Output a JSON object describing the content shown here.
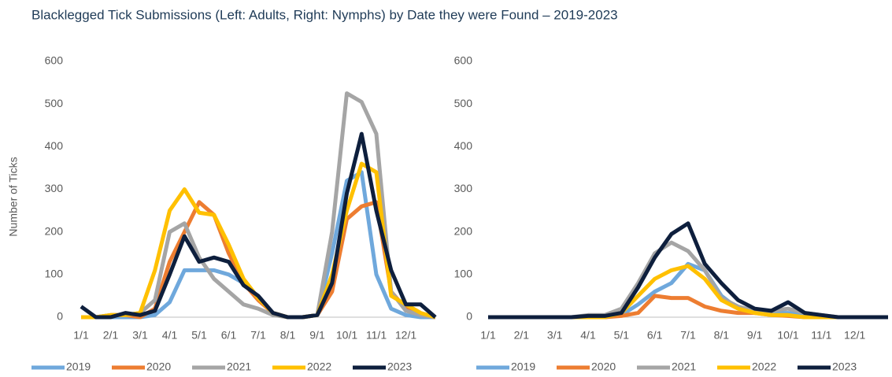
{
  "title": "Blacklegged Tick Submissions (Left: Adults, Right: Nymphs) by Date they were Found – 2019-2023",
  "chart_data": [
    {
      "type": "line",
      "y_label": "Number of Ticks",
      "categories": [
        "1/1",
        null,
        "2/1",
        null,
        "3/1",
        null,
        "4/1",
        null,
        "5/1",
        null,
        "6/1",
        null,
        "7/1",
        null,
        "8/1",
        null,
        "9/1",
        null,
        "10/1",
        null,
        "11/1",
        null,
        "12/1",
        null,
        null
      ],
      "ylim": [
        0,
        600
      ],
      "yticks": [
        0,
        100,
        200,
        300,
        400,
        500,
        600
      ],
      "grid": false,
      "series": [
        {
          "name": "2019",
          "color": "#6fa8dc",
          "values": [
            0,
            0,
            0,
            0,
            0,
            5,
            35,
            110,
            110,
            110,
            100,
            80,
            45,
            10,
            0,
            0,
            5,
            150,
            320,
            340,
            100,
            20,
            5,
            0,
            0
          ]
        },
        {
          "name": "2020",
          "color": "#ed7d31",
          "values": [
            0,
            0,
            5,
            5,
            0,
            20,
            130,
            200,
            270,
            240,
            150,
            80,
            40,
            10,
            0,
            0,
            5,
            60,
            230,
            260,
            270,
            60,
            20,
            5,
            0
          ]
        },
        {
          "name": "2021",
          "color": "#a5a5a5",
          "values": [
            0,
            0,
            5,
            5,
            10,
            40,
            200,
            220,
            140,
            90,
            60,
            30,
            20,
            5,
            0,
            0,
            5,
            200,
            525,
            505,
            430,
            60,
            15,
            5,
            0
          ]
        },
        {
          "name": "2022",
          "color": "#ffc000",
          "values": [
            0,
            0,
            5,
            5,
            10,
            110,
            250,
            300,
            245,
            240,
            170,
            90,
            45,
            10,
            0,
            0,
            5,
            100,
            250,
            360,
            340,
            50,
            30,
            10,
            0
          ]
        },
        {
          "name": "2023",
          "color": "#0e1f3d",
          "values": [
            25,
            0,
            0,
            10,
            5,
            15,
            100,
            190,
            130,
            140,
            130,
            75,
            50,
            10,
            0,
            0,
            5,
            80,
            290,
            430,
            250,
            110,
            30,
            30,
            0
          ]
        }
      ]
    },
    {
      "type": "line",
      "categories": [
        "1/1",
        null,
        "2/1",
        null,
        "3/1",
        null,
        "4/1",
        null,
        "5/1",
        null,
        "6/1",
        null,
        "7/1",
        null,
        "8/1",
        null,
        "9/1",
        null,
        "10/1",
        null,
        "11/1",
        null,
        "12/1",
        null,
        null
      ],
      "ylim": [
        0,
        600
      ],
      "yticks": [
        0,
        100,
        200,
        300,
        400,
        500,
        600
      ],
      "grid": false,
      "series": [
        {
          "name": "2019",
          "color": "#6fa8dc",
          "values": [
            0,
            0,
            0,
            0,
            0,
            0,
            0,
            0,
            5,
            30,
            60,
            80,
            125,
            110,
            50,
            20,
            10,
            10,
            10,
            5,
            0,
            0,
            0,
            0,
            0
          ]
        },
        {
          "name": "2020",
          "color": "#ed7d31",
          "values": [
            0,
            0,
            0,
            0,
            0,
            0,
            0,
            0,
            3,
            10,
            50,
            45,
            45,
            25,
            15,
            10,
            10,
            5,
            3,
            0,
            0,
            0,
            0,
            0,
            0
          ]
        },
        {
          "name": "2021",
          "color": "#a5a5a5",
          "values": [
            0,
            0,
            0,
            0,
            0,
            0,
            5,
            5,
            20,
            80,
            150,
            175,
            155,
            110,
            45,
            25,
            15,
            15,
            20,
            10,
            5,
            0,
            0,
            0,
            0
          ]
        },
        {
          "name": "2022",
          "color": "#ffc000",
          "values": [
            0,
            0,
            0,
            0,
            0,
            0,
            0,
            0,
            10,
            50,
            90,
            110,
            120,
            90,
            40,
            20,
            10,
            5,
            5,
            0,
            0,
            0,
            0,
            0,
            0
          ]
        },
        {
          "name": "2023",
          "color": "#0e1f3d",
          "values": [
            0,
            0,
            0,
            0,
            0,
            0,
            3,
            3,
            10,
            70,
            140,
            195,
            220,
            125,
            80,
            40,
            20,
            15,
            35,
            10,
            5,
            0,
            0,
            0,
            0
          ]
        }
      ]
    }
  ]
}
